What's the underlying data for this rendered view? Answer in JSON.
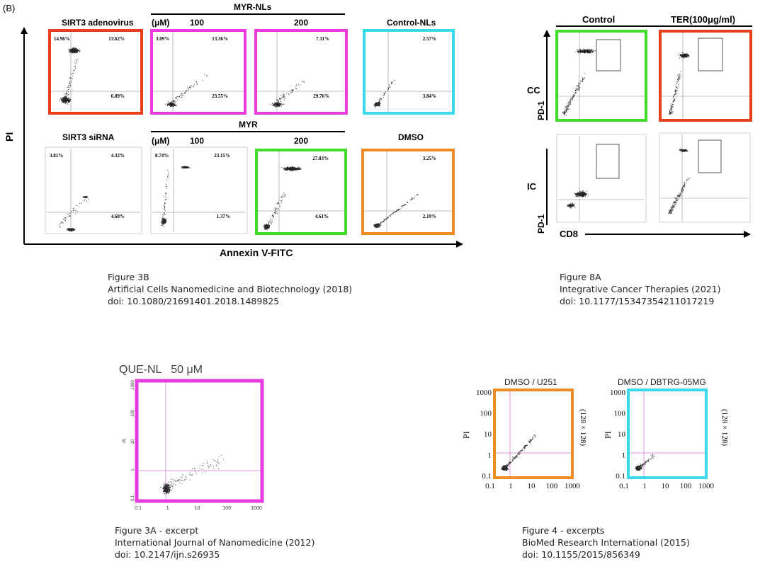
{
  "colors": {
    "red": "#e8401c",
    "magenta": "#e83be0",
    "cyan": "#39d9ec",
    "green": "#3fdc2a",
    "orange": "#f08a22",
    "pink_gate": "#d99ad8"
  },
  "fig3b": {
    "panel_label": "(B)",
    "y_axis_label": "PI",
    "x_axis_label": "Annexin V-FITC",
    "headers": {
      "sirt3_adeno": "SIRT3 adenovirus",
      "myr_nls": "MYR-NLs",
      "control_nls": "Control-NLs",
      "sirt3_sirna": "SIRT3 siRNA",
      "myr": "MYR",
      "dmso": "DMSO",
      "um_top": "(μM)",
      "um_bottom": "(μM)",
      "dose100_top": "100",
      "dose200_top": "200",
      "dose100_bottom": "100",
      "dose200_bottom": "200"
    },
    "panels": [
      {
        "ul": "14.96%",
        "ur": "13.62%",
        "lr": "6.89%"
      },
      {
        "ul": "3.09%",
        "ur": "13.36%",
        "lr": "23.55%"
      },
      {
        "ul": "",
        "ur": "7.11%",
        "lr": "29.76%"
      },
      {
        "ul": "",
        "ur": "2.57%",
        "lr": "3.84%"
      },
      {
        "ul": "3.81%",
        "ur": "4.32%",
        "lr": "4.68%"
      },
      {
        "ul": "8.74%",
        "ur": "23.15%",
        "lr": "1.37%"
      },
      {
        "ul": "",
        "ur": "27.83%",
        "lr": "4.61%"
      },
      {
        "ul": "",
        "ur": "3.25%",
        "lr": "2.19%"
      }
    ]
  },
  "fig8a": {
    "col_control": "Control",
    "col_ter": "TER(100μg/ml)",
    "row_cc": "CC",
    "row_ic": "IC",
    "y_label_top": "PD-1",
    "y_label_bottom": "PD-1",
    "x_label": "CD8"
  },
  "fig3a": {
    "title": "QUE-NL   50 μM",
    "y_label": "PI",
    "y_ticks": [
      "1000",
      "100",
      "10",
      "1",
      "0.1"
    ],
    "x_ticks": [
      "0.1",
      "1",
      "10",
      "100",
      "1000"
    ]
  },
  "fig4": {
    "left_title": "DMSO / U251",
    "right_title": "DMSO / DBTRG-05MG",
    "y_label": "PI",
    "side_label": "(128 × 128)",
    "y_ticks": [
      "1000",
      "100",
      "10",
      "1",
      "0.1"
    ],
    "x_ticks": [
      "0.1",
      "1",
      "10",
      "100",
      "1000"
    ]
  },
  "captions": {
    "c1": {
      "l1": "Figure 3B",
      "l2": "Artificial Cells Nanomedicine and Biotechnology (2018)",
      "l3": "doi: 10.1080/21691401.2018.1489825"
    },
    "c2": {
      "l1": "Figure 8A",
      "l2": "Integrative Cancer Therapies (2021)",
      "l3": "doi: 10.1177/15347354211017219"
    },
    "c3": {
      "l1": "Figure 3A - excerpt",
      "l2": "International Journal of Nanomedicine (2012)",
      "l3": "doi: 10.2147/ijn.s26935"
    },
    "c4": {
      "l1": "Figure 4 - excerpts",
      "l2": "BioMed Research International (2015)",
      "l3": "doi: 10.1155/2015/856349"
    }
  }
}
